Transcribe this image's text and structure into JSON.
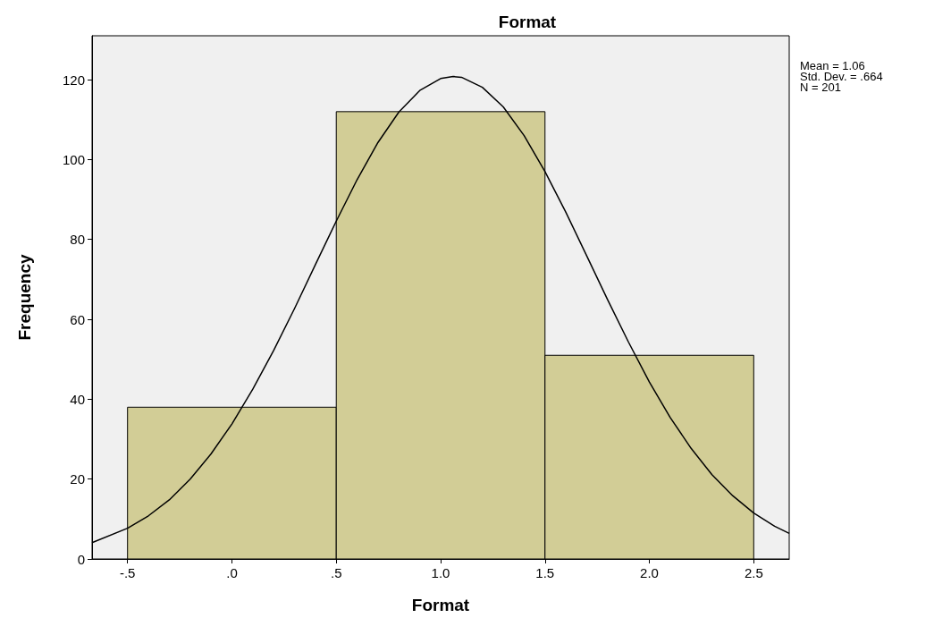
{
  "chart_data": {
    "type": "histogram",
    "title": "Format",
    "xlabel": "Format",
    "ylabel": "Frequency",
    "annotations": [
      "Mean = 1.06",
      "Std. Dev. = .664",
      "N = 201"
    ],
    "bins": [
      -0.5,
      0.5,
      1.5,
      2.5
    ],
    "series": [
      {
        "color": "#d2cd96",
        "values": [
          38,
          112,
          51
        ]
      },
      {
        "type": "line",
        "color": "#000000",
        "x": [
          -0.67,
          -0.5,
          -0.4,
          -0.3,
          -0.2,
          -0.1,
          0,
          0.1,
          0.2,
          0.3,
          0.4,
          0.5,
          0.6,
          0.7,
          0.8,
          0.9,
          1.0,
          1.06,
          1.1,
          1.2,
          1.3,
          1.4,
          1.5,
          1.6,
          1.7,
          1.8,
          1.9,
          2.0,
          2.1,
          2.2,
          2.3,
          2.4,
          2.5,
          2.6,
          2.67
        ],
        "values": [
          4.1,
          7.7,
          10.8,
          14.8,
          20.0,
          26.3,
          33.8,
          42.5,
          52.2,
          62.7,
          73.7,
          84.6,
          95.0,
          104.3,
          111.9,
          117.3,
          120.3,
          120.8,
          120.6,
          118.1,
          113.2,
          106.0,
          97.0,
          86.8,
          75.9,
          64.9,
          54.3,
          44.3,
          35.4,
          27.7,
          21.1,
          15.8,
          11.5,
          8.2,
          6.4
        ]
      }
    ],
    "xlim": [
      -0.67,
      2.67
    ],
    "xticks": [
      {
        "value": -0.5,
        "label": "-.5"
      },
      {
        "value": 0,
        "label": ".0"
      },
      {
        "value": 0.5,
        "label": ".5"
      },
      {
        "value": 1,
        "label": "1.0"
      },
      {
        "value": 1.5,
        "label": "1.5"
      },
      {
        "value": 2,
        "label": "2.0"
      },
      {
        "value": 2.5,
        "label": "2.5"
      }
    ],
    "ylim": [
      0,
      131
    ],
    "yticks": [
      0,
      20,
      40,
      60,
      80,
      100,
      120
    ],
    "grid": false,
    "marker": "none",
    "line_style": "solid"
  }
}
